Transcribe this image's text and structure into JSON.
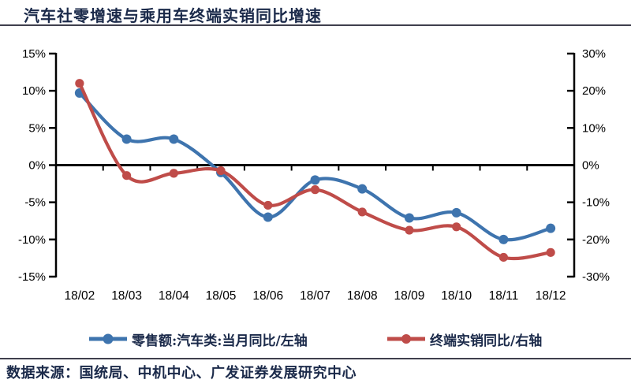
{
  "page": {
    "title": "汽车社零增速与乘用车终端实销同比增速",
    "source_note": "数据来源：国统局、中机中心、广发证券发展研究中心"
  },
  "colors": {
    "series_blue": "#3e74ae",
    "series_red": "#bf4c49",
    "axis_black": "#000000",
    "heading_navy": "#1b2a4a",
    "rule_gray": "#3f3f4d"
  },
  "chart_data": {
    "type": "line",
    "title": "汽车社零增速与乘用车终端实销同比增速",
    "categories": [
      "18/02",
      "18/03",
      "18/04",
      "18/05",
      "18/06",
      "18/07",
      "18/08",
      "18/09",
      "18/10",
      "18/11",
      "18/12"
    ],
    "series": [
      {
        "name": "零售额:汽车类:当月同比/左轴",
        "axis": "left",
        "color": "#3e74ae",
        "marker": "circle",
        "values": [
          9.7,
          3.5,
          3.5,
          -1.0,
          -7.0,
          -2.0,
          -3.2,
          -7.1,
          -6.4,
          -10.0,
          -8.5
        ]
      },
      {
        "name": "终端实销同比/右轴",
        "axis": "right",
        "color": "#bf4c49",
        "marker": "circle",
        "values": [
          22.0,
          -2.8,
          -2.2,
          -1.5,
          -10.8,
          -6.6,
          -12.6,
          -17.5,
          -16.6,
          -24.8,
          -23.5
        ]
      }
    ],
    "left_axis": {
      "min": -15,
      "max": 15,
      "tick_step": 5,
      "ticks": [
        "15%",
        "10%",
        "5%",
        "0%",
        "-5%",
        "-10%",
        "-15%"
      ]
    },
    "right_axis": {
      "min": -30,
      "max": 30,
      "tick_step": 10,
      "ticks": [
        "30%",
        "20%",
        "10%",
        "0%",
        "-10%",
        "-20%",
        "-30%"
      ]
    },
    "grid": false,
    "legend_position": "bottom",
    "line_style": "smooth"
  }
}
